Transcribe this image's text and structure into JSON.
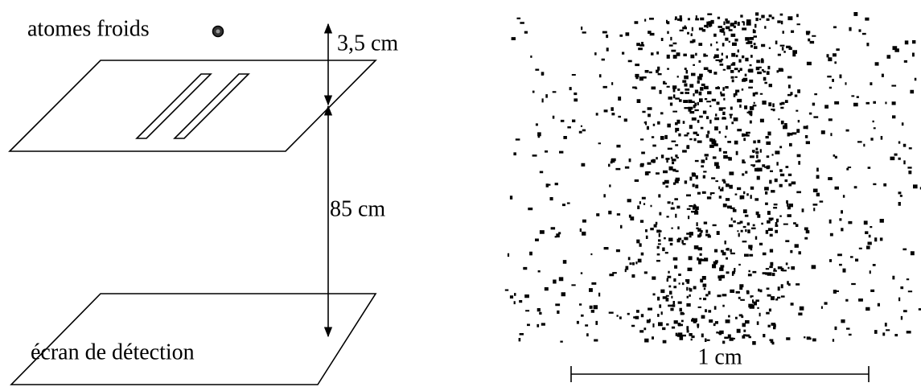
{
  "setup": {
    "source_label": "atomes froids",
    "gap_top_label": "3,5 cm",
    "gap_bottom_label": "85 cm",
    "screen_label": "écran de détection"
  },
  "pattern": {
    "scale_label": "1 cm"
  }
}
